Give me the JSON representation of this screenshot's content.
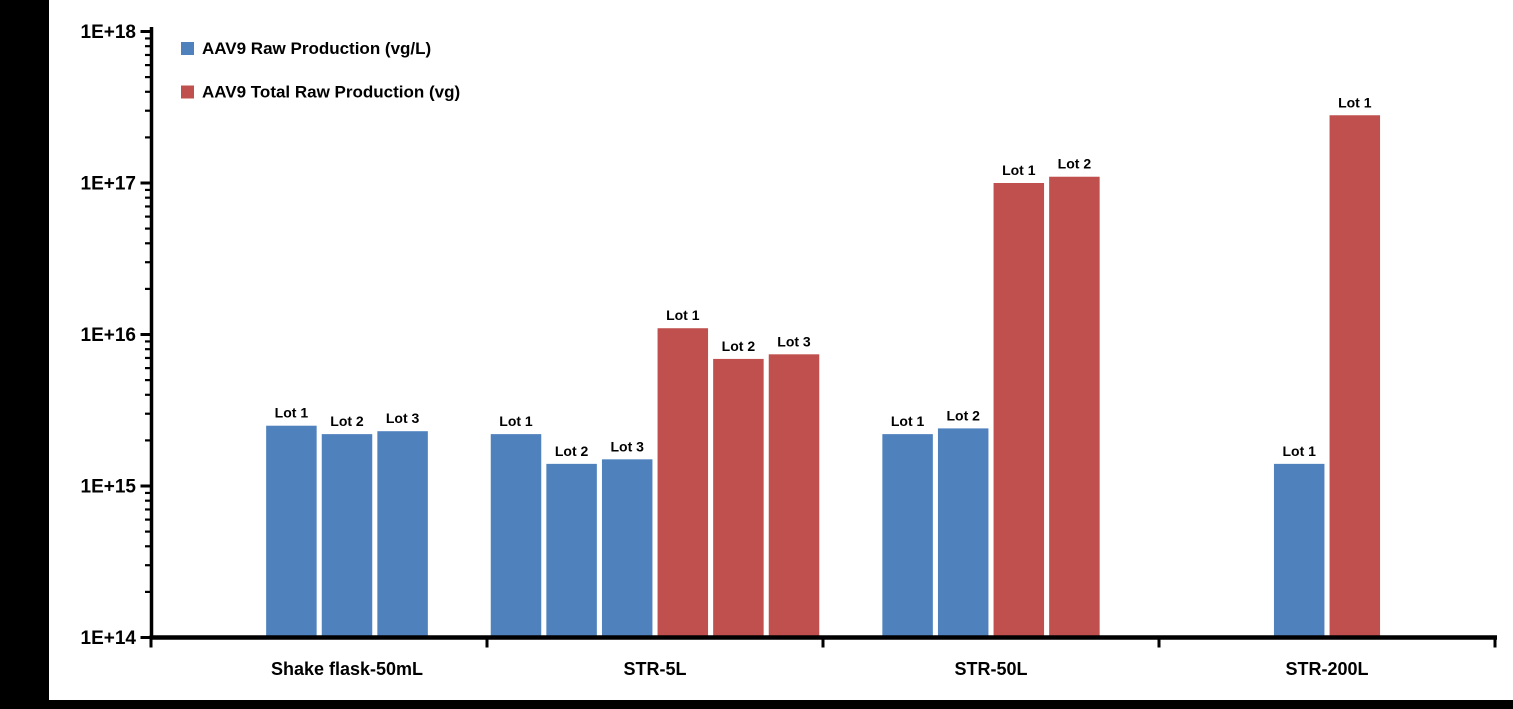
{
  "page": {
    "background": "#FFFFFF",
    "frame_color": "#000000"
  },
  "legend": {
    "position": "top-left",
    "items": [
      {
        "series": "raw",
        "label": "AAV9 Raw Production (vg/L)",
        "color": "#4F81BD"
      },
      {
        "series": "total",
        "label": "AAV9 Total Raw Production (vg)",
        "color": "#C0504D"
      }
    ]
  },
  "chart_data": {
    "type": "bar",
    "title": "",
    "xlabel": "",
    "ylabel": "",
    "y_scale": "log",
    "ylim": [
      100000000000000.0,
      1e+18
    ],
    "y_tick_labels": [
      "1E+14",
      "1E+15",
      "1E+16",
      "1E+17",
      "1E+18"
    ],
    "grid": false,
    "legend_position": "top-left",
    "text_color": "#000000",
    "categories": [
      "Shake flask-50mL",
      "STR-5L",
      "STR-50L",
      "STR-200L"
    ],
    "series_colors": {
      "raw": "#4F81BD",
      "total": "#C0504D"
    },
    "groups": [
      {
        "category": "Shake flask-50mL",
        "bars": [
          {
            "series": "raw",
            "lot": "Lot 1",
            "value": 2500000000000000.0
          },
          {
            "series": "raw",
            "lot": "Lot 2",
            "value": 2200000000000000.0
          },
          {
            "series": "raw",
            "lot": "Lot 3",
            "value": 2300000000000000.0
          }
        ]
      },
      {
        "category": "STR-5L",
        "bars": [
          {
            "series": "raw",
            "lot": "Lot 1",
            "value": 2200000000000000.0
          },
          {
            "series": "raw",
            "lot": "Lot 2",
            "value": 1400000000000000.0
          },
          {
            "series": "raw",
            "lot": "Lot 3",
            "value": 1500000000000000.0
          },
          {
            "series": "total",
            "lot": "Lot 1",
            "value": 1.1e+16
          },
          {
            "series": "total",
            "lot": "Lot 2",
            "value": 6900000000000000.0
          },
          {
            "series": "total",
            "lot": "Lot 3",
            "value": 7400000000000000.0
          }
        ]
      },
      {
        "category": "STR-50L",
        "bars": [
          {
            "series": "raw",
            "lot": "Lot 1",
            "value": 2200000000000000.0
          },
          {
            "series": "raw",
            "lot": "Lot 2",
            "value": 2400000000000000.0
          },
          {
            "series": "total",
            "lot": "Lot 1",
            "value": 1e+17
          },
          {
            "series": "total",
            "lot": "Lot 2",
            "value": 1.1e+17
          }
        ]
      },
      {
        "category": "STR-200L",
        "bars": [
          {
            "series": "raw",
            "lot": "Lot 1",
            "value": 1400000000000000.0
          },
          {
            "series": "total",
            "lot": "Lot 1",
            "value": 2.8e+17
          }
        ]
      }
    ]
  }
}
